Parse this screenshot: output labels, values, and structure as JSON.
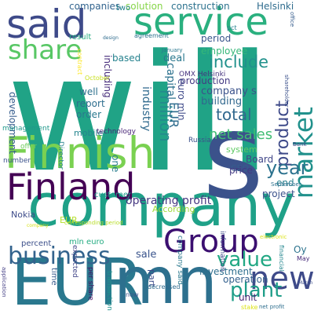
{
  "words": [
    {
      "text": "will",
      "color": "#20a386",
      "rot": 0
    },
    {
      "text": "company",
      "color": "#1fa188",
      "rot": 0
    },
    {
      "text": "s",
      "color": "#3b528b",
      "rot": 0
    },
    {
      "text": "EUR",
      "color": "#2a788e",
      "rot": 0
    },
    {
      "text": "mn",
      "color": "#2d708e",
      "rot": 0
    },
    {
      "text": "Finnish",
      "color": "#7ad151",
      "rot": 0
    },
    {
      "text": "Finland",
      "color": "#440154",
      "rot": 0
    },
    {
      "text": "said",
      "color": "#3e4a89",
      "rot": 0
    },
    {
      "text": "service",
      "color": "#2ab07f",
      "rot": 0
    },
    {
      "text": "Group",
      "color": "#3b0f70",
      "rot": 0
    },
    {
      "text": "new",
      "color": "#3e4a89",
      "rot": 0
    },
    {
      "text": "business",
      "color": "#33638d",
      "rot": 0
    },
    {
      "text": "share",
      "color": "#58c765",
      "rot": 0
    },
    {
      "text": "market",
      "color": "#21918c",
      "rot": -90
    },
    {
      "text": "net sales",
      "color": "#3fbc73",
      "rot": 0
    },
    {
      "text": "include",
      "color": "#21918c",
      "rot": 0
    },
    {
      "text": "product",
      "color": "#3e4a89",
      "rot": -90
    },
    {
      "text": "year",
      "color": "#2c728e",
      "rot": 0
    },
    {
      "text": "total",
      "color": "#31688e",
      "rot": 0
    },
    {
      "text": "million",
      "color": "#238a8d",
      "rot": 90
    },
    {
      "text": "EUR",
      "color": "#2f6c8e",
      "rot": 90
    },
    {
      "text": "operating profit",
      "color": "#453781",
      "rot": 0
    },
    {
      "text": "plant",
      "color": "#1f9e89",
      "rot": 0
    },
    {
      "text": "value",
      "color": "#22a884",
      "rot": 0
    },
    {
      "text": "construction",
      "color": "#2c728e",
      "rot": 0
    },
    {
      "text": "solution",
      "color": "#86d549",
      "rot": 0
    },
    {
      "text": "Helsinki",
      "color": "#2f6c8e",
      "rot": 0
    },
    {
      "text": "companies",
      "color": "#32648e",
      "rot": 0
    },
    {
      "text": "two",
      "color": "#25848e",
      "rot": 0
    },
    {
      "text": "period",
      "color": "#39568c",
      "rot": 0
    },
    {
      "text": "employee",
      "color": "#35b779",
      "rot": 0
    },
    {
      "text": "result",
      "color": "#27ad81",
      "rot": 0
    },
    {
      "text": "based",
      "color": "#26828e",
      "rot": 0
    },
    {
      "text": "deal",
      "color": "#2a788e",
      "rot": 0
    },
    {
      "text": "OMX Helsinki",
      "color": "#46327e",
      "rot": 0
    },
    {
      "text": "production",
      "color": "#443983",
      "rot": 0
    },
    {
      "text": "company s",
      "color": "#3b528b",
      "rot": 0
    },
    {
      "text": "building",
      "color": "#31688e",
      "rot": 0
    },
    {
      "text": "well",
      "color": "#2d708e",
      "rot": 0
    },
    {
      "text": "report",
      "color": "#2e6e8e",
      "rot": 0
    },
    {
      "text": "order",
      "color": "#29798e",
      "rot": 0
    },
    {
      "text": "including",
      "color": "#472d7b",
      "rot": 90
    },
    {
      "text": "industry",
      "color": "#306a8e",
      "rot": 90
    },
    {
      "text": "capital",
      "color": "#2d718e",
      "rot": 90
    },
    {
      "text": "euro mln",
      "color": "#3e4989",
      "rot": 90
    },
    {
      "text": "development",
      "color": "#365c8d",
      "rot": 90
    },
    {
      "text": "mobile",
      "color": "#25858e",
      "rot": 0
    },
    {
      "text": "technology",
      "color": "#482677",
      "rot": 0
    },
    {
      "text": "customer",
      "color": "#1e9b8a",
      "rot": 0
    },
    {
      "text": "system",
      "color": "#5ec962",
      "rot": 0
    },
    {
      "text": "Board",
      "color": "#404688",
      "rot": 0
    },
    {
      "text": "CEO",
      "color": "#365d8d",
      "rot": 0
    },
    {
      "text": "end",
      "color": "#277f8e",
      "rot": 0
    },
    {
      "text": "project",
      "color": "#3b528b",
      "rot": 0
    },
    {
      "text": "According",
      "color": "#a0da39",
      "rot": 0
    },
    {
      "text": "Russia",
      "color": "#3b528b",
      "rot": 0
    },
    {
      "text": "price",
      "color": "#443a83",
      "rot": 0
    },
    {
      "text": "one",
      "color": "#287d8e",
      "rot": 90
    },
    {
      "text": "sale",
      "color": "#3a548c",
      "rot": 0
    },
    {
      "text": "mln euro",
      "color": "#25ac82",
      "rot": 0
    },
    {
      "text": "Nokia",
      "color": "#3e4c8a",
      "rot": 0
    },
    {
      "text": "EUR",
      "color": "#b5de2b",
      "rot": 0
    },
    {
      "text": "expected",
      "color": "#404588",
      "rot": 90
    },
    {
      "text": "percent",
      "color": "#3c4f8a",
      "rot": 0
    },
    {
      "text": "investment",
      "color": "#2e6f8e",
      "rot": 0
    },
    {
      "text": "operation",
      "color": "#34618d",
      "rot": 0
    },
    {
      "text": "Oy",
      "color": "#2c738e",
      "rot": 0
    },
    {
      "text": "part",
      "color": "#3d4d8a",
      "rot": 90
    },
    {
      "text": "unit",
      "color": "#482475",
      "rot": 0
    },
    {
      "text": "time",
      "color": "#375b8d",
      "rot": 90
    },
    {
      "text": "management",
      "color": "#1f988b",
      "rot": 0
    },
    {
      "text": "number",
      "color": "#3b528b",
      "rot": 0
    },
    {
      "text": "offer",
      "color": "#6ccd5a",
      "rot": 0
    },
    {
      "text": "Director",
      "color": "#26818e",
      "rot": 90
    },
    {
      "text": "per share",
      "color": "#471063",
      "rot": 90
    },
    {
      "text": "transaction",
      "color": "#20928c",
      "rot": 90
    },
    {
      "text": "corresponding period",
      "color": "#b8de29",
      "rot": 0
    },
    {
      "text": "company said",
      "color": "#2a788e",
      "rot": 90
    },
    {
      "text": "information",
      "color": "#3e4a89",
      "rot": 90
    },
    {
      "text": "financial",
      "color": "#24868e",
      "rot": 90
    },
    {
      "text": "decreased",
      "color": "#2f6b8e",
      "rot": 0
    },
    {
      "text": "now",
      "color": "#3a548c",
      "rot": 0
    },
    {
      "text": "stake",
      "color": "#dde318",
      "rot": 0
    },
    {
      "text": "net profit",
      "color": "#2e6e8e",
      "rot": 0
    },
    {
      "text": "May",
      "color": "#472a7a",
      "rot": 0
    },
    {
      "text": "March",
      "color": "#3d4e8a",
      "rot": 0
    },
    {
      "text": "September",
      "color": "#2d718e",
      "rot": 0
    },
    {
      "text": "Bank",
      "color": "#3f4788",
      "rot": 0
    },
    {
      "text": "agreement",
      "color": "#2c728e",
      "rot": 0
    },
    {
      "text": "pct",
      "color": "#27808e",
      "rot": 0
    },
    {
      "text": "design",
      "color": "#2f6c8e",
      "rot": 0
    },
    {
      "text": "January",
      "color": "#2a778e",
      "rot": 0
    },
    {
      "text": "October",
      "color": "#c8e020",
      "rot": 0
    },
    {
      "text": "contract",
      "color": "#fde725",
      "rot": 90
    },
    {
      "text": "shareholder",
      "color": "#3b518b",
      "rot": 90
    },
    {
      "text": "office",
      "color": "#365d8d",
      "rot": 90
    },
    {
      "text": "application",
      "color": "#433e85",
      "rot": 90
    },
    {
      "text": "electronic",
      "color": "#dce319",
      "rot": 0
    },
    {
      "text": "company",
      "color": "#d8e219",
      "rot": 0
    }
  ]
}
